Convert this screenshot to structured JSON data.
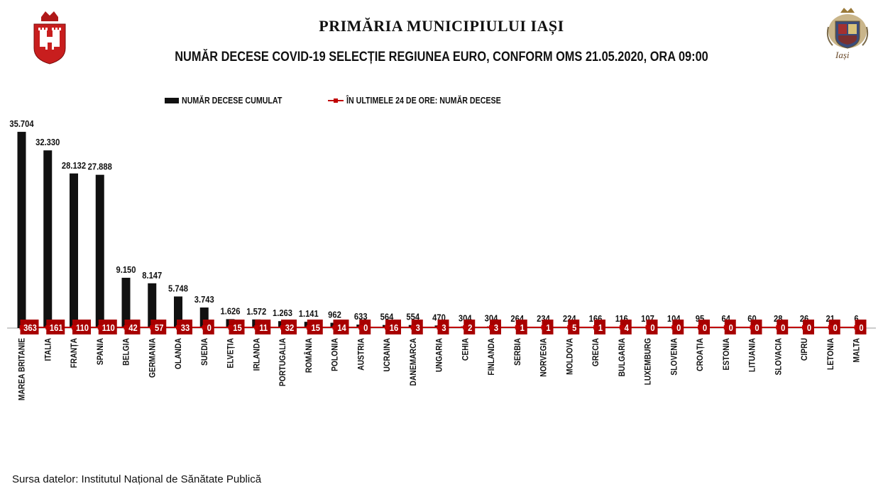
{
  "header": {
    "title": "PRIMĂRIA MUNICIPIULUI IAȘI",
    "subtitle": "NUMĂR DECESE COVID-19 SELECȚIE REGIUNEA EURO, CONFORM OMS 21.05.2020, ORA 09:00"
  },
  "logos": {
    "left_icon": "city-coat-of-arms-icon",
    "right_icon": "iasi-heraldic-crest-icon",
    "right_text": "Iași"
  },
  "legend": {
    "bar_label": "NUMĂR DECESE CUMULAT",
    "line_label": "ÎN ULTIMELE 24 DE ORE: NUMĂR DECESE"
  },
  "colors": {
    "bar": "#111111",
    "line": "#c00000",
    "marker_box": "#a80000",
    "marker_text": "#ffffff"
  },
  "chart_data": {
    "type": "bar",
    "categories": [
      "MAREA BRITANIE",
      "ITALIA",
      "FRANȚA",
      "SPANIA",
      "BELGIA",
      "GERMANIA",
      "OLANDA",
      "SUEDIA",
      "ELVEȚIA",
      "IRLANDA",
      "PORTUGALIA",
      "ROMÂNIA",
      "POLONIA",
      "AUSTRIA",
      "UCRAINA",
      "DANEMARCA",
      "UNGARIA",
      "CEHIA",
      "FINLANDA",
      "SERBIA",
      "NORVEGIA",
      "MOLDOVA",
      "GRECIA",
      "BULGARIA",
      "LUXEMBURG",
      "SLOVENIA",
      "CROAȚIA",
      "ESTONIA",
      "LITUANIA",
      "SLOVACIA",
      "CIPRU",
      "LETONIA",
      "MALTA"
    ],
    "series": [
      {
        "name": "NUMĂR DECESE CUMULAT",
        "type": "bar",
        "values": [
          35704,
          32330,
          28132,
          27888,
          9150,
          8147,
          5748,
          3743,
          1626,
          1572,
          1263,
          1141,
          962,
          633,
          564,
          554,
          470,
          304,
          304,
          264,
          234,
          224,
          166,
          116,
          107,
          104,
          95,
          64,
          60,
          28,
          26,
          21,
          6
        ],
        "labels": [
          "35.704",
          "32.330",
          "28.132",
          "27.888",
          "9.150",
          "8.147",
          "5.748",
          "3.743",
          "1.626",
          "1.572",
          "1.263",
          "1.141",
          "962",
          "633",
          "564",
          "554",
          "470",
          "304",
          "304",
          "264",
          "234",
          "224",
          "166",
          "116",
          "107",
          "104",
          "95",
          "64",
          "60",
          "28",
          "26",
          "21",
          "6"
        ]
      },
      {
        "name": "ÎN ULTIMELE 24 DE ORE: NUMĂR DECESE",
        "type": "line",
        "values": [
          363,
          161,
          110,
          110,
          42,
          57,
          33,
          0,
          15,
          11,
          32,
          15,
          14,
          0,
          16,
          3,
          3,
          2,
          3,
          1,
          1,
          5,
          1,
          4,
          0,
          0,
          0,
          0,
          0,
          0,
          0,
          0,
          0
        ],
        "labels": [
          "363",
          "161",
          "110",
          "110",
          "42",
          "57",
          "33",
          "0",
          "15",
          "11",
          "32",
          "15",
          "14",
          "0",
          "16",
          "3",
          "3",
          "2",
          "3",
          "1",
          "1",
          "5",
          "1",
          "4",
          "0",
          "0",
          "0",
          "0",
          "0",
          "0",
          "0",
          "0",
          "0"
        ]
      }
    ],
    "ylim": [
      0,
      37000
    ],
    "grid": false,
    "legend": "top-center"
  },
  "footer": {
    "source": "Sursa datelor: Institutul Național de Sănătate Publică"
  }
}
